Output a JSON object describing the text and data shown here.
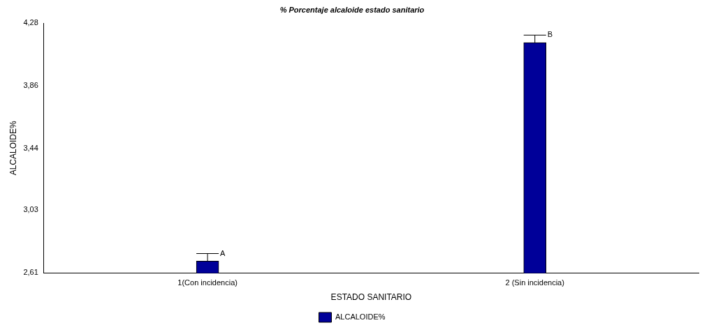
{
  "chart_data": {
    "type": "bar",
    "title": "% Porcentaje alcaloide estado sanitario",
    "xlabel": "ESTADO SANITARIO",
    "ylabel": "ALCALOIDE%",
    "categories": [
      "1(Con incidencia)",
      "2 (Sin incidencia)"
    ],
    "series": [
      {
        "name": "ALCALOIDE%",
        "color": "#000099",
        "values": [
          2.69,
          4.15
        ],
        "errors": [
          [
            2.69,
            2.74
          ],
          [
            4.15,
            4.2
          ]
        ]
      }
    ],
    "ylim": [
      2.61,
      4.28
    ],
    "yticks": [
      {
        "value": 2.61,
        "label": "2,61"
      },
      {
        "value": 3.03,
        "label": "3,03"
      },
      {
        "value": 3.44,
        "label": "3,44"
      },
      {
        "value": 3.86,
        "label": "3,86"
      },
      {
        "value": 4.28,
        "label": "4,28"
      }
    ],
    "annotations": [
      {
        "text": "A",
        "x": "1(Con incidencia)",
        "y": 2.74
      },
      {
        "text": "B",
        "x": "2 (Sin incidencia)",
        "y": 4.2
      }
    ],
    "grid": false,
    "legend": "bottom"
  }
}
